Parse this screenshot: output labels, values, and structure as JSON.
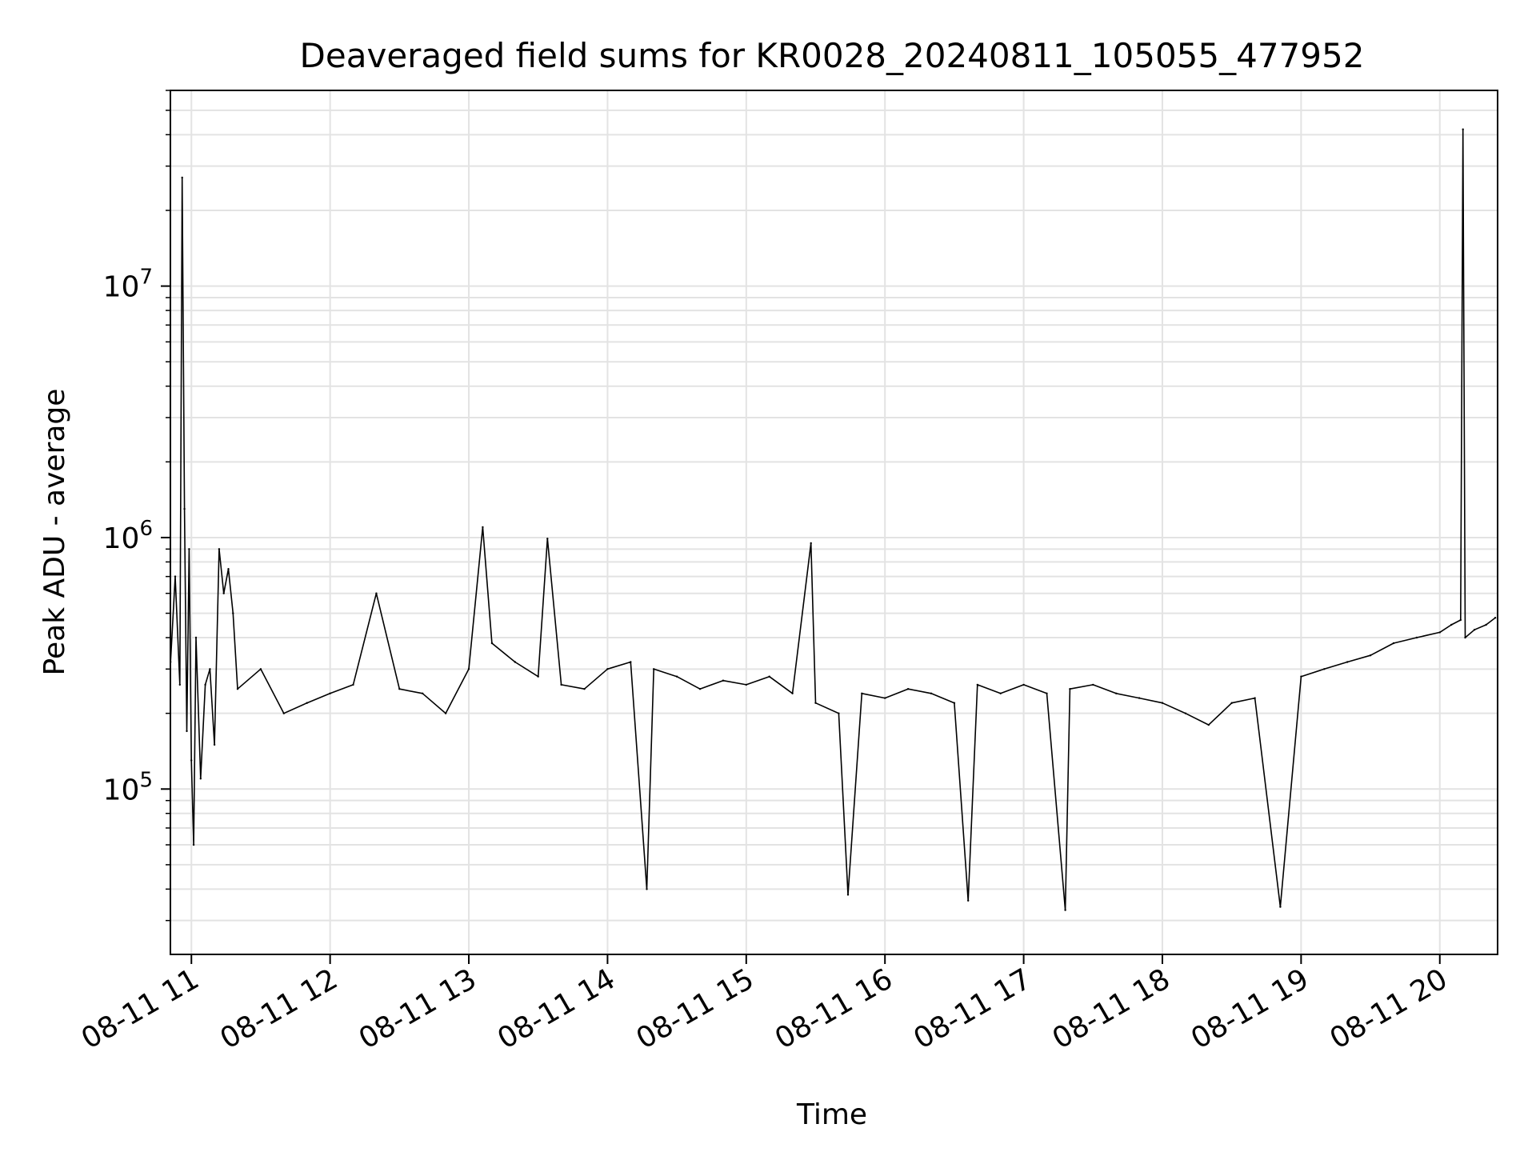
{
  "chart_data": {
    "type": "line",
    "title": "Deaveraged field sums for KR0028_20240811_105055_477952",
    "xlabel": "Time",
    "ylabel": "Peak ADU - average",
    "yscale": "log",
    "ylim": [
      22000,
      60000000
    ],
    "xlim": [
      "2024-08-11 10:50:55",
      "2024-08-11 20:25:00"
    ],
    "x_ticks": [
      {
        "value": "2024-08-11 11:00",
        "label": "08-11 11"
      },
      {
        "value": "2024-08-11 12:00",
        "label": "08-11 12"
      },
      {
        "value": "2024-08-11 13:00",
        "label": "08-11 13"
      },
      {
        "value": "2024-08-11 14:00",
        "label": "08-11 14"
      },
      {
        "value": "2024-08-11 15:00",
        "label": "08-11 15"
      },
      {
        "value": "2024-08-11 16:00",
        "label": "08-11 16"
      },
      {
        "value": "2024-08-11 17:00",
        "label": "08-11 17"
      },
      {
        "value": "2024-08-11 18:00",
        "label": "08-11 18"
      },
      {
        "value": "2024-08-11 19:00",
        "label": "08-11 19"
      },
      {
        "value": "2024-08-11 20:00",
        "label": "08-11 20"
      }
    ],
    "y_ticks": [
      {
        "value": 100000,
        "base": "10",
        "exp": "5"
      },
      {
        "value": 1000000,
        "base": "10",
        "exp": "6"
      },
      {
        "value": 10000000,
        "base": "10",
        "exp": "7"
      }
    ],
    "grid": true,
    "series": [
      {
        "color": "#000000",
        "x": [
          "2024-08-11 10:51",
          "2024-08-11 10:53",
          "2024-08-11 10:55",
          "2024-08-11 10:56",
          "2024-08-11 10:57",
          "2024-08-11 10:58",
          "2024-08-11 10:59",
          "2024-08-11 11:00",
          "2024-08-11 11:01",
          "2024-08-11 11:02",
          "2024-08-11 11:04",
          "2024-08-11 11:06",
          "2024-08-11 11:08",
          "2024-08-11 11:10",
          "2024-08-11 11:12",
          "2024-08-11 11:14",
          "2024-08-11 11:16",
          "2024-08-11 11:18",
          "2024-08-11 11:20",
          "2024-08-11 11:30",
          "2024-08-11 11:40",
          "2024-08-11 11:50",
          "2024-08-11 12:00",
          "2024-08-11 12:10",
          "2024-08-11 12:20",
          "2024-08-11 12:30",
          "2024-08-11 12:40",
          "2024-08-11 12:50",
          "2024-08-11 13:00",
          "2024-08-11 13:06",
          "2024-08-11 13:10",
          "2024-08-11 13:20",
          "2024-08-11 13:30",
          "2024-08-11 13:34",
          "2024-08-11 13:40",
          "2024-08-11 13:50",
          "2024-08-11 14:00",
          "2024-08-11 14:10",
          "2024-08-11 14:17",
          "2024-08-11 14:20",
          "2024-08-11 14:30",
          "2024-08-11 14:40",
          "2024-08-11 14:50",
          "2024-08-11 15:00",
          "2024-08-11 15:10",
          "2024-08-11 15:20",
          "2024-08-11 15:28",
          "2024-08-11 15:30",
          "2024-08-11 15:40",
          "2024-08-11 15:44",
          "2024-08-11 15:50",
          "2024-08-11 16:00",
          "2024-08-11 16:10",
          "2024-08-11 16:20",
          "2024-08-11 16:30",
          "2024-08-11 16:36",
          "2024-08-11 16:40",
          "2024-08-11 16:50",
          "2024-08-11 17:00",
          "2024-08-11 17:10",
          "2024-08-11 17:18",
          "2024-08-11 17:20",
          "2024-08-11 17:30",
          "2024-08-11 17:40",
          "2024-08-11 17:50",
          "2024-08-11 18:00",
          "2024-08-11 18:10",
          "2024-08-11 18:20",
          "2024-08-11 18:30",
          "2024-08-11 18:40",
          "2024-08-11 18:51",
          "2024-08-11 19:00",
          "2024-08-11 19:10",
          "2024-08-11 19:20",
          "2024-08-11 19:30",
          "2024-08-11 19:40",
          "2024-08-11 19:50",
          "2024-08-11 20:00",
          "2024-08-11 20:05",
          "2024-08-11 20:09",
          "2024-08-11 20:10",
          "2024-08-11 20:11",
          "2024-08-11 20:15",
          "2024-08-11 20:20",
          "2024-08-11 20:24"
        ],
        "y": [
          320000,
          700000,
          260000,
          27000000,
          1300000,
          170000,
          900000,
          130000,
          60000,
          400000,
          110000,
          260000,
          300000,
          150000,
          900000,
          600000,
          750000,
          500000,
          250000,
          300000,
          200000,
          220000,
          240000,
          260000,
          600000,
          250000,
          240000,
          200000,
          300000,
          1100000,
          380000,
          320000,
          280000,
          990000,
          260000,
          250000,
          300000,
          320000,
          40000,
          300000,
          280000,
          250000,
          270000,
          260000,
          280000,
          240000,
          950000,
          220000,
          200000,
          38000,
          240000,
          230000,
          250000,
          240000,
          220000,
          36000,
          260000,
          240000,
          260000,
          240000,
          33000,
          250000,
          260000,
          240000,
          230000,
          220000,
          200000,
          180000,
          220000,
          230000,
          34000,
          280000,
          300000,
          320000,
          340000,
          380000,
          400000,
          420000,
          450000,
          470000,
          42000000,
          400000,
          430000,
          450000,
          480000
        ]
      }
    ]
  }
}
